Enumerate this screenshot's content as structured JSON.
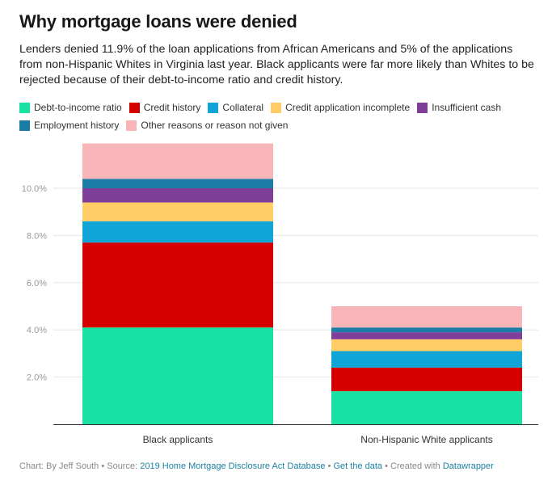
{
  "header": {
    "title": "Why mortgage loans were denied",
    "subtitle": "Lenders denied 11.9% of the loan applications from African Americans and 5% of the applications from non-Hispanic Whites in Virginia last year. Black applicants were far more likely than Whites to be rejected because of their debt-to-income ratio and credit history."
  },
  "footer": {
    "credit": "Chart: By Jeff South",
    "source_prefix": "Source:",
    "source_link": "2019 Home Mortgage Disclosure Act Database",
    "get_data": "Get the data",
    "created_prefix": "Created with",
    "created_link": "Datawrapper",
    "sep": "•"
  },
  "chart_data": {
    "type": "bar",
    "stacked": true,
    "title": "Why mortgage loans were denied",
    "categories": [
      "Black applicants",
      "Non-Hispanic White applicants"
    ],
    "ylim": [
      0,
      12
    ],
    "yticks": [
      2,
      4,
      6,
      8,
      10
    ],
    "ytick_labels": [
      "2.0%",
      "4.0%",
      "6.0%",
      "8.0%",
      "10.0%"
    ],
    "legend_position": "top",
    "grid": true,
    "series": [
      {
        "name": "Debt-to-income ratio",
        "color": "#17e2a4",
        "values": [
          4.1,
          1.4
        ]
      },
      {
        "name": "Credit history",
        "color": "#d40000",
        "values": [
          3.6,
          1.0
        ]
      },
      {
        "name": "Collateral",
        "color": "#11a4d7",
        "values": [
          0.9,
          0.7
        ]
      },
      {
        "name": "Credit application incomplete",
        "color": "#ffcc66",
        "values": [
          0.8,
          0.5
        ]
      },
      {
        "name": "Insufficient cash",
        "color": "#7f3f98",
        "values": [
          0.6,
          0.3
        ]
      },
      {
        "name": "Employment history",
        "color": "#1b7ca8",
        "values": [
          0.4,
          0.2
        ]
      },
      {
        "name": "Other reasons or reason not given",
        "color": "#f7b5b8",
        "values": [
          1.5,
          0.9
        ]
      }
    ]
  }
}
